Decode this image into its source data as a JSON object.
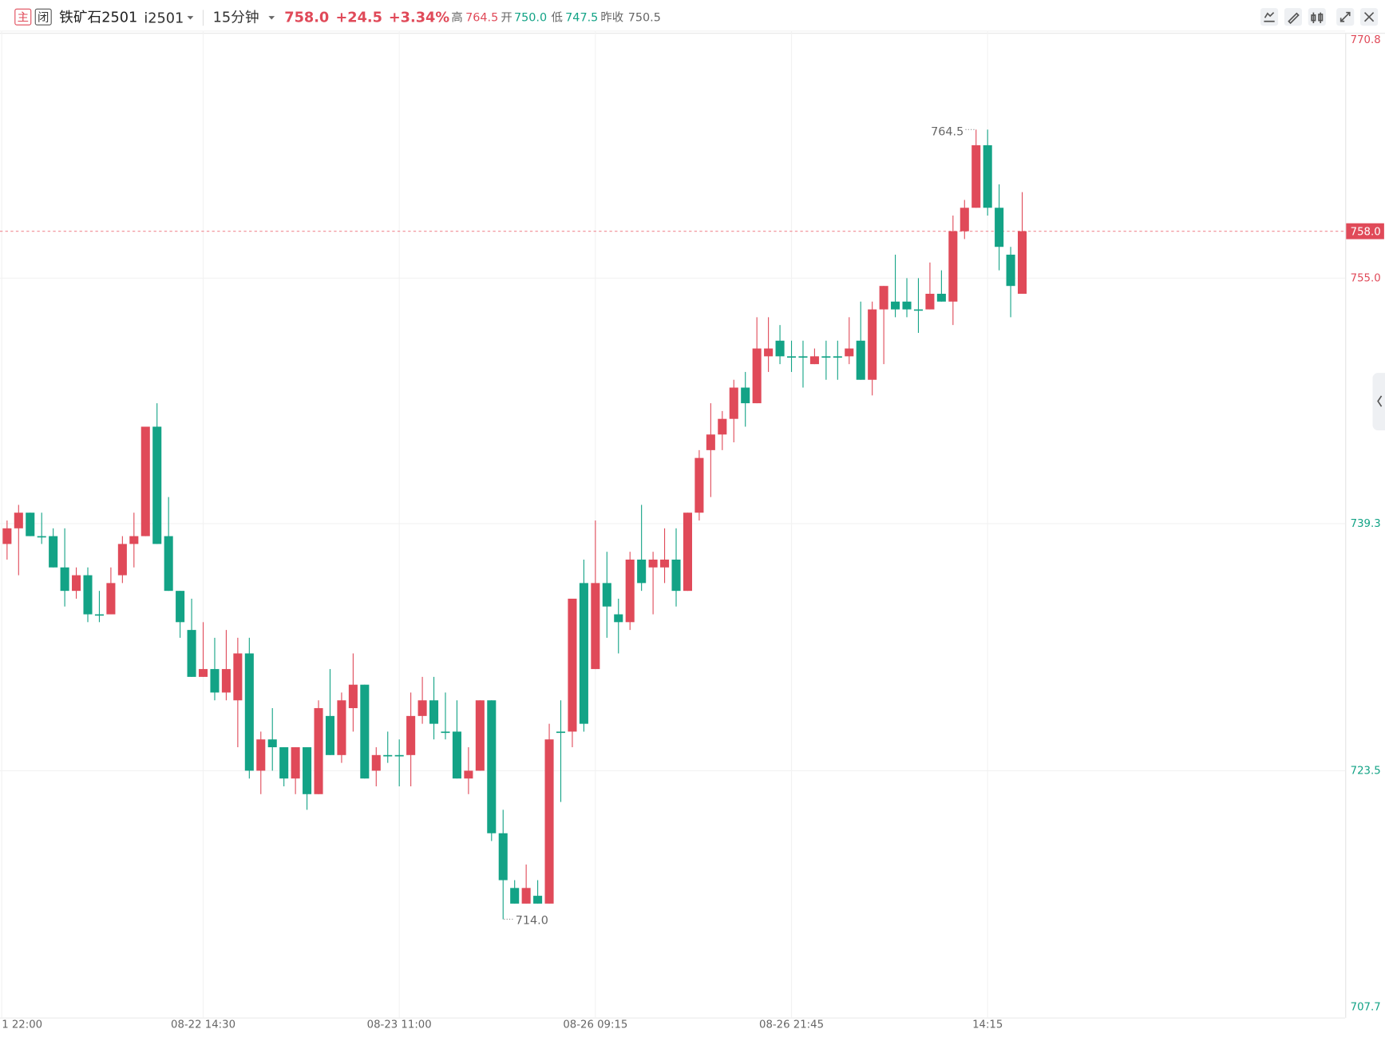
{
  "header": {
    "icon_main": "主",
    "icon_closed": "闭",
    "name": "铁矿石2501",
    "code": "i2501",
    "period": "15分钟",
    "price": "758.0",
    "change": "+24.5",
    "change_pct": "+3.34%",
    "high_label": "高",
    "high": "764.5",
    "open_label": "开",
    "open": "750.0",
    "low_label": "低",
    "low": "747.5",
    "prev_close_label": "昨收",
    "prev_close": 750.5
  },
  "chart_data": {
    "type": "candlestick",
    "up_color": "#e04a59",
    "down_color": "#13a386",
    "categories": [
      "1 22:00",
      null,
      null,
      null,
      null,
      null,
      null,
      null,
      null,
      null,
      null,
      null,
      null,
      null,
      null,
      null,
      null,
      "08-22 14:30",
      null,
      null,
      null,
      null,
      null,
      null,
      null,
      null,
      null,
      null,
      null,
      null,
      null,
      null,
      null,
      null,
      "08-23 11:00",
      null,
      null,
      null,
      null,
      null,
      null,
      null,
      null,
      null,
      null,
      null,
      null,
      null,
      null,
      null,
      null,
      "08-26 09:15",
      null,
      null,
      null,
      null,
      null,
      null,
      null,
      null,
      null,
      null,
      null,
      null,
      null,
      null,
      null,
      null,
      "08-26 21:45",
      null,
      null,
      null,
      null,
      null,
      null,
      null,
      null,
      null,
      null,
      null,
      null,
      null,
      null,
      null,
      null,
      "14:15",
      null,
      null,
      null
    ],
    "open": [
      738,
      739,
      740,
      738.5,
      738.5,
      736.5,
      735,
      736,
      733.5,
      733.5,
      736,
      738,
      738.5,
      745.5,
      738.5,
      735,
      732.5,
      729.5,
      730,
      728.5,
      728,
      731,
      723.5,
      725.5,
      725,
      723,
      725,
      722,
      727,
      724.5,
      727.5,
      729,
      723.5,
      724.5,
      724.5,
      724.5,
      727,
      728,
      726,
      726,
      723,
      723.5,
      728,
      719.5,
      716,
      715,
      715.5,
      715,
      726,
      726,
      735.5,
      730,
      735.5,
      733.5,
      733,
      737,
      736.5,
      736.5,
      737,
      735,
      740,
      744,
      745,
      746,
      748,
      747,
      750,
      751,
      750,
      750,
      749.5,
      750,
      750,
      750,
      751,
      748.5,
      753,
      753.5,
      753.5,
      753,
      753,
      754,
      753.5,
      758,
      759.5,
      763.5,
      759.5,
      756.5,
      754
    ],
    "high": [
      739.5,
      740.5,
      740,
      740,
      739,
      739,
      736.5,
      736.5,
      735,
      736.5,
      738.5,
      740,
      745.5,
      747,
      741,
      735,
      734.5,
      733,
      732,
      732.5,
      732,
      732,
      726,
      727.5,
      725,
      725,
      725,
      728,
      730,
      728.5,
      731,
      729,
      725,
      726,
      725.5,
      728.5,
      729.5,
      729.5,
      728.5,
      728,
      725,
      728,
      728,
      721,
      716.5,
      717.5,
      716.5,
      726.5,
      728,
      734.5,
      737,
      739.5,
      737.5,
      734.5,
      737.5,
      740.5,
      737.5,
      739,
      739,
      740,
      744,
      747,
      746.5,
      748.5,
      749,
      752.5,
      752.5,
      752,
      751,
      751,
      750.5,
      751,
      751,
      752.5,
      753.5,
      753.5,
      754.5,
      756.5,
      755,
      755,
      756,
      755.5,
      759,
      760,
      764.5,
      764.5,
      761,
      757,
      760.5
    ],
    "low": [
      737,
      736,
      738.5,
      738,
      736.5,
      734,
      734.5,
      733,
      733,
      733.5,
      735.5,
      736.5,
      738.5,
      738,
      735,
      732,
      729.5,
      729.5,
      728,
      728,
      725,
      723,
      722,
      723.5,
      722.5,
      722,
      721,
      722,
      724.5,
      724,
      726,
      723,
      722.5,
      724,
      722.5,
      722.5,
      726.5,
      725.5,
      725.5,
      723,
      722,
      723.5,
      719,
      714,
      715,
      715,
      715,
      715,
      721.5,
      725,
      726,
      730,
      732,
      731,
      732.5,
      735,
      733.5,
      735.5,
      734,
      735,
      739.5,
      741,
      744,
      744.5,
      745.5,
      747,
      749,
      749.5,
      749,
      748,
      749.5,
      748.5,
      748.5,
      749.5,
      748.5,
      747.5,
      749.5,
      752.5,
      752.5,
      751.5,
      753,
      753.5,
      752,
      757.5,
      759.5,
      759,
      755.5,
      752.5,
      754
    ],
    "close": [
      739,
      740,
      738.5,
      738.5,
      736.5,
      735,
      736,
      733.5,
      733.5,
      735.5,
      738,
      738.5,
      745.5,
      738,
      735,
      733,
      729.5,
      730,
      728.5,
      730,
      731,
      723.5,
      725.5,
      725,
      723,
      725,
      722,
      727.5,
      724.5,
      728,
      729,
      723,
      724.5,
      724.5,
      724.5,
      727,
      728,
      726.5,
      726,
      723,
      723.5,
      728,
      719.5,
      716.5,
      715,
      716,
      715,
      725.5,
      726,
      734.5,
      726.5,
      735.5,
      734,
      733,
      737,
      735.5,
      737,
      737,
      735,
      740,
      743.5,
      745,
      746,
      748,
      747,
      750.5,
      750.5,
      750,
      750,
      750,
      750,
      750,
      750,
      750.5,
      748.5,
      753,
      754.5,
      753,
      753,
      753,
      754,
      753.5,
      758,
      759.5,
      763.5,
      759.5,
      757,
      754.5,
      758
    ],
    "ylim": [
      707.7,
      770.8
    ],
    "yticks": [
      707.7,
      723.5,
      739.3,
      {
        "value": 755,
        "label": "755.0"
      },
      770.8
    ],
    "last_price": {
      "value": 758,
      "label": "758.0"
    },
    "max_marker": 764.5,
    "min_marker": {
      "value": 714,
      "label": "714.0"
    },
    "grid": true
  }
}
